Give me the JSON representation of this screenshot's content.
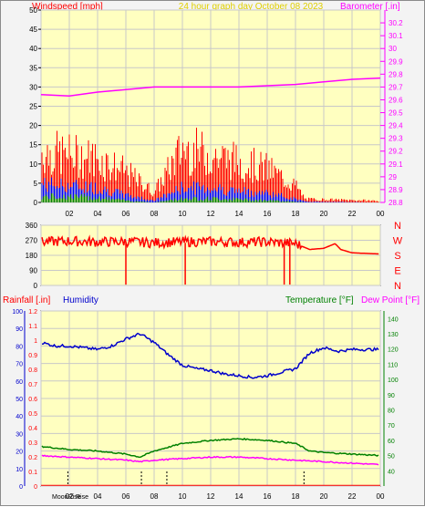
{
  "header": {
    "left_label": "Windspeed [mph]",
    "center_label": "24 hour graph day   October 08 2023",
    "right_label": "Barometer [.in]"
  },
  "colors": {
    "wind_max": "#ff0000",
    "wind_avg": "#0000ff",
    "wind_min": "#008000",
    "barometer": "#ff00ff",
    "direction": "#ff0000",
    "rain": "#ff0000",
    "humidity": "#0000cc",
    "temperature": "#008000",
    "dewpoint": "#ff00ff",
    "plot_bg": "#ffffc0",
    "grid": "#c8c8c8"
  },
  "chart_data": [
    {
      "type": "bar",
      "name": "windspeed-and-barometer",
      "left_axis": {
        "label": "Windspeed [mph]",
        "min": 0,
        "max": 50,
        "ticks": [
          0,
          5,
          10,
          15,
          20,
          25,
          30,
          35,
          40,
          45,
          50
        ]
      },
      "right_axis": {
        "label": "Barometer [.in]",
        "min": 28.8,
        "max": 30.3,
        "ticks": [
          "28.8",
          "28.9",
          "29",
          "29.1",
          "29.2",
          "29.3",
          "29.4",
          "29.5",
          "29.6",
          "29.7",
          "29.8",
          "29.9",
          "30",
          "30.1",
          "30.2"
        ]
      },
      "x_ticks": [
        "02",
        "04",
        "06",
        "08",
        "10",
        "12",
        "14",
        "16",
        "18",
        "20",
        "22",
        "00"
      ],
      "barometer": {
        "x": [
          0,
          2,
          4,
          6,
          8,
          10,
          12,
          14,
          16,
          18,
          20,
          22,
          24
        ],
        "values": [
          29.64,
          29.63,
          29.66,
          29.68,
          29.7,
          29.7,
          29.7,
          29.7,
          29.71,
          29.72,
          29.74,
          29.76,
          29.77
        ]
      },
      "wind_envelope": {
        "x": [
          0,
          2,
          4,
          6,
          8,
          10,
          12,
          14,
          16,
          18,
          18.7,
          24
        ],
        "gust_max": [
          15,
          14,
          13,
          9,
          3,
          16,
          14,
          12,
          10,
          5,
          1,
          0.5
        ],
        "avg": [
          5,
          4.5,
          4,
          2,
          0.5,
          4,
          4,
          3,
          2.5,
          1,
          0.2,
          0
        ],
        "min": [
          1.5,
          1.5,
          1.2,
          0.5,
          0,
          1,
          1,
          0.8,
          0.5,
          0.2,
          0,
          0
        ]
      },
      "grid": true
    },
    {
      "type": "scatter",
      "name": "wind-direction",
      "left_axis": {
        "ticks": [
          "0",
          "90",
          "180",
          "270",
          "360"
        ]
      },
      "right_axis": {
        "ticks": [
          "N",
          "W",
          "S",
          "E",
          "N"
        ]
      },
      "x": [
        0,
        2,
        4,
        6,
        8,
        10,
        12,
        14,
        16,
        18,
        19,
        20,
        20.8,
        21.2,
        22,
        24
      ],
      "values": [
        260,
        265,
        260,
        262,
        255,
        260,
        262,
        258,
        260,
        250,
        215,
        222,
        250,
        215,
        195,
        188
      ],
      "grid": true
    },
    {
      "type": "line",
      "name": "rain-humidity-temperature",
      "left_label": "Rainfall [.in]",
      "left2_label": "Humidity",
      "right_label": "Temperature [°F]",
      "right2_label": "Dew Point [°F]",
      "rain_axis": {
        "min": 0,
        "max": 1.2,
        "ticks": [
          "0",
          "0.1",
          "0.2",
          "0.3",
          "0.4",
          "0.5",
          "0.6",
          "0.7",
          "0.8",
          "0.9",
          "1",
          "1.1",
          "1.2"
        ]
      },
      "humidity_axis": {
        "min": 0,
        "max": 100,
        "ticks": [
          "0",
          "10",
          "20",
          "30",
          "40",
          "50",
          "60",
          "70",
          "80",
          "90",
          "100"
        ]
      },
      "temperature_axis": {
        "min": 30,
        "max": 145,
        "ticks": [
          "40",
          "50",
          "60",
          "70",
          "80",
          "90",
          "100",
          "110",
          "120",
          "130",
          "140"
        ]
      },
      "x_ticks": [
        "02",
        "04",
        "06",
        "08",
        "10",
        "12",
        "14",
        "16",
        "18",
        "20",
        "22",
        "00"
      ],
      "moon_labels": {
        "moonrise": "MoonRise",
        "sunrise": "Rise"
      },
      "series": [
        {
          "name": "Humidity",
          "x": [
            0,
            1,
            2,
            3,
            4,
            5,
            6,
            7,
            8,
            9,
            10,
            11,
            12,
            13,
            14,
            15,
            16,
            17,
            18,
            19,
            20,
            21,
            22,
            23,
            24
          ],
          "values": [
            82,
            80,
            80,
            79,
            78,
            80,
            84,
            87,
            82,
            75,
            69,
            67,
            66,
            64,
            63,
            62,
            63,
            65,
            67,
            76,
            79,
            77,
            78,
            78,
            78
          ]
        },
        {
          "name": "Temperature",
          "x": [
            0,
            2,
            4,
            6,
            7,
            8,
            10,
            12,
            14,
            16,
            18,
            19,
            20,
            22,
            24
          ],
          "values": [
            56,
            54,
            53,
            51,
            49,
            53,
            58,
            60,
            61,
            60,
            58,
            53,
            52,
            51,
            50
          ]
        },
        {
          "name": "Dew Point",
          "x": [
            0,
            2,
            4,
            6,
            7,
            8,
            10,
            12,
            14,
            16,
            18,
            20,
            22,
            24
          ],
          "values": [
            50,
            49,
            48,
            47,
            46,
            47,
            48,
            49,
            49,
            48,
            47,
            46,
            45,
            44
          ]
        }
      ],
      "event_markers_x": [
        1.9,
        7.1,
        8.9,
        18.6
      ],
      "grid": true
    }
  ]
}
